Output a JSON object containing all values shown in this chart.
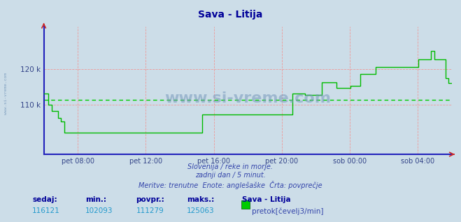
{
  "title": "Sava - Litija",
  "bg_color": "#ccdde8",
  "plot_bg_color": "#ccdde8",
  "line_color": "#00bb00",
  "avg_line_color": "#00cc00",
  "grid_color_v": "#ee9999",
  "grid_color_h": "#ee9999",
  "spine_color": "#2222bb",
  "title_color": "#000099",
  "axis_label_color": "#334488",
  "text_color": "#3344aa",
  "stat_value_color": "#2299cc",
  "watermark_color": "#7799bb",
  "left_label_color": "#5588aa",
  "ymin": 96000,
  "ymax": 132000,
  "avg_value": 111279,
  "min_value": 102093,
  "max_value": 125063,
  "current_value": 116121,
  "ytick_labels": [
    "110 k",
    "120 k"
  ],
  "ytick_values": [
    110000,
    120000
  ],
  "xtick_labels": [
    "pet 08:00",
    "pet 12:00",
    "pet 16:00",
    "pet 20:00",
    "sob 00:00",
    "sob 04:00"
  ],
  "subtitle1": "Slovenija / reke in morje.",
  "subtitle2": "zadnji dan / 5 minut.",
  "subtitle3": "Meritve: trenutne  Enote: anglešaške  Črta: povprečje",
  "bottom_labels": [
    "sedaj:",
    "min.:",
    "povpr.:",
    "maks.:"
  ],
  "bottom_values": [
    "116121",
    "102093",
    "111279",
    "125063"
  ],
  "legend_label": "pretok[čevelj3/min]",
  "station_label": "Sava - Litija",
  "watermark": "www.si-vreme.com",
  "left_watermark": "www.si-vreme.com",
  "data_values": [
    113200,
    113200,
    113200,
    110000,
    110000,
    108300,
    108300,
    108300,
    108300,
    106200,
    106200,
    105200,
    105200,
    102093,
    102093,
    102093,
    102093,
    102093,
    102093,
    102093,
    102093,
    102093,
    102093,
    102093,
    102093,
    102093,
    102093,
    102093,
    102093,
    102093,
    102093,
    102093,
    102093,
    102093,
    102093,
    102093,
    102093,
    102093,
    102093,
    102093,
    102093,
    102093,
    102093,
    102093,
    102093,
    102093,
    102093,
    102093,
    102093,
    102093,
    102093,
    102093,
    102093,
    102093,
    102093,
    102093,
    102093,
    102093,
    102093,
    102093,
    102093,
    102093,
    102093,
    102093,
    102093,
    102093,
    102093,
    102093,
    102093,
    102093,
    102093,
    102093,
    102093,
    102093,
    102093,
    102093,
    102093,
    102093,
    102093,
    102093,
    102093,
    102093,
    102093,
    102093,
    102093,
    102093,
    102093,
    102093,
    102093,
    102093,
    102093,
    102093,
    102093,
    102093,
    102093,
    102093,
    102093,
    102093,
    102093,
    102093,
    107200,
    107200,
    107200,
    107200,
    107200,
    107200,
    107200,
    107200,
    107200,
    107200,
    107200,
    107200,
    107200,
    107200,
    107200,
    107200,
    107200,
    107200,
    107200,
    107200,
    107200,
    107200,
    107200,
    107200,
    107200,
    107200,
    107200,
    107200,
    107200,
    107200,
    107200,
    107200,
    107200,
    107200,
    107200,
    107200,
    107200,
    107200,
    107200,
    107200,
    107200,
    107200,
    107200,
    107200,
    107200,
    107200,
    107200,
    107200,
    107200,
    107200,
    107200,
    107200,
    107200,
    107200,
    107200,
    107200,
    107200,
    113200,
    113200,
    113200,
    113200,
    113200,
    113200,
    113200,
    113200,
    112800,
    112800,
    112800,
    112800,
    112800,
    112800,
    112800,
    112800,
    112800,
    112800,
    112800,
    116300,
    116300,
    116300,
    116300,
    116300,
    116300,
    116300,
    116300,
    116300,
    114800,
    114800,
    114800,
    114800,
    114800,
    114800,
    114800,
    114800,
    114800,
    115200,
    115200,
    115200,
    115200,
    115200,
    115200,
    118700,
    118700,
    118700,
    118700,
    118700,
    118700,
    118700,
    118700,
    118700,
    118700,
    120700,
    120700,
    120700,
    120700,
    120700,
    120700,
    120700,
    120700,
    120700,
    120700,
    120700,
    120700,
    120700,
    120700,
    120700,
    120700,
    120700,
    120700,
    120700,
    120700,
    120700,
    120700,
    120700,
    120700,
    120700,
    120700,
    120700,
    122700,
    122700,
    122700,
    122700,
    122700,
    122700,
    122700,
    122700,
    125063,
    125063,
    122800,
    122800,
    122800,
    122800,
    122800,
    122800,
    122800,
    117500,
    117500,
    116000,
    116000,
    116121
  ]
}
